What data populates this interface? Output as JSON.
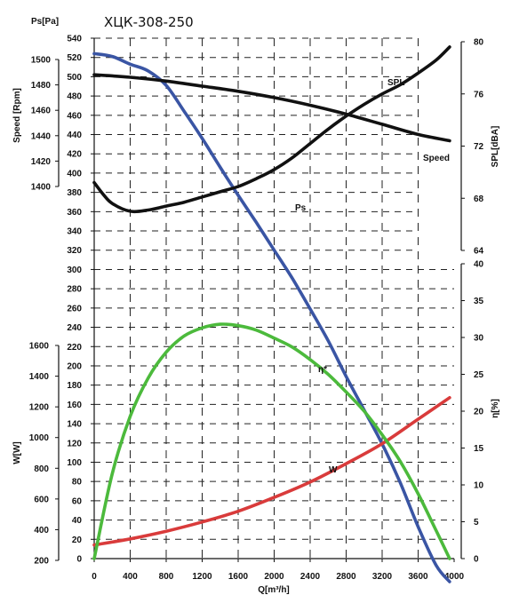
{
  "title": "ХЦК-308-250",
  "chart_data": {
    "type": "line",
    "title": "ХЦК-308-250",
    "xlabel": "Q[m³/h]",
    "xlim": [
      0,
      4000
    ],
    "x_ticks": [
      "0",
      "400",
      "800",
      "1200",
      "1600",
      "2000",
      "2400",
      "2800",
      "3200",
      "3600",
      "4000"
    ],
    "axes": {
      "ps": {
        "label": "Ps[Pa]",
        "range": [
          0,
          540
        ],
        "ticks": [
          "0",
          "20",
          "40",
          "60",
          "80",
          "100",
          "120",
          "140",
          "160",
          "180",
          "200",
          "220",
          "240",
          "260",
          "280",
          "300",
          "320",
          "340",
          "360",
          "380",
          "400",
          "420",
          "440",
          "460",
          "480",
          "500",
          "520",
          "540"
        ]
      },
      "speed": {
        "label": "Speed [Rpm]",
        "range": [
          1400,
          1500
        ],
        "ticks": [
          "1400",
          "1420",
          "1440",
          "1460",
          "1480",
          "1500"
        ]
      },
      "spl": {
        "label": "SPL[dBA]",
        "range": [
          64,
          80
        ],
        "ticks": [
          "64",
          "68",
          "72",
          "76",
          "80"
        ]
      },
      "w": {
        "label": "W[W]",
        "range": [
          200,
          1600
        ],
        "ticks": [
          "200",
          "400",
          "600",
          "800",
          "1000",
          "1200",
          "1400",
          "1600"
        ]
      },
      "eta": {
        "label": "η[%]",
        "range": [
          0,
          40
        ],
        "ticks": [
          "0",
          "5",
          "10",
          "15",
          "20",
          "25",
          "30",
          "35",
          "40"
        ]
      }
    },
    "series": [
      {
        "name": "Ps",
        "axis": "ps",
        "color": "#3a55a4",
        "x": [
          0,
          200,
          400,
          600,
          800,
          1000,
          1200,
          1400,
          1600,
          1800,
          2000,
          2200,
          2400,
          2600,
          2800,
          3000,
          3200,
          3400,
          3600,
          3800,
          3950
        ],
        "y": [
          524,
          521,
          513,
          506,
          491,
          464,
          436,
          406,
          377,
          349,
          320,
          291,
          259,
          226,
          189,
          154,
          119,
          79,
          33,
          -7,
          -24
        ]
      },
      {
        "name": "Speed",
        "axis": "speed",
        "color": "#111111",
        "x": [
          0,
          400,
          800,
          1200,
          1600,
          2000,
          2400,
          2800,
          3200,
          3600,
          3950
        ],
        "y": [
          1488,
          1486,
          1483,
          1479,
          1475,
          1470,
          1464,
          1457,
          1449,
          1441,
          1436
        ]
      },
      {
        "name": "SPL",
        "axis": "spl",
        "color": "#111111",
        "x": [
          0,
          100,
          200,
          400,
          600,
          800,
          1000,
          1200,
          1400,
          1600,
          1800,
          2000,
          2200,
          2400,
          2600,
          2800,
          3000,
          3200,
          3400,
          3600,
          3800,
          3950
        ],
        "y": [
          69.2,
          68.3,
          67.6,
          67.0,
          67.1,
          67.4,
          67.7,
          68.1,
          68.5,
          68.9,
          69.5,
          70.2,
          71.1,
          72.2,
          73.3,
          74.3,
          75.2,
          76.0,
          76.7,
          77.6,
          78.6,
          79.6
        ]
      },
      {
        "name": "W",
        "axis": "w",
        "color": "#d93b3b",
        "x": [
          0,
          400,
          800,
          1200,
          1600,
          2000,
          2400,
          2800,
          3200,
          3600,
          3950
        ],
        "y": [
          300,
          340,
          390,
          450,
          520,
          610,
          710,
          830,
          960,
          1120,
          1260
        ]
      },
      {
        "name": "η",
        "axis": "eta",
        "color": "#4cba3c",
        "x": [
          0,
          200,
          400,
          600,
          800,
          1000,
          1200,
          1400,
          1600,
          1800,
          2000,
          2200,
          2400,
          2600,
          2800,
          3000,
          3200,
          3400,
          3600,
          3800,
          3950
        ],
        "y": [
          0,
          11.5,
          19.3,
          24.5,
          28.0,
          30.2,
          31.3,
          31.8,
          31.6,
          31.0,
          29.9,
          28.7,
          27.0,
          25.0,
          22.6,
          20.0,
          16.8,
          13.2,
          8.8,
          3.8,
          0
        ]
      }
    ],
    "series_labels": [
      "Ps",
      "Speed",
      "SPL",
      "W",
      "η*"
    ],
    "grid": true
  }
}
